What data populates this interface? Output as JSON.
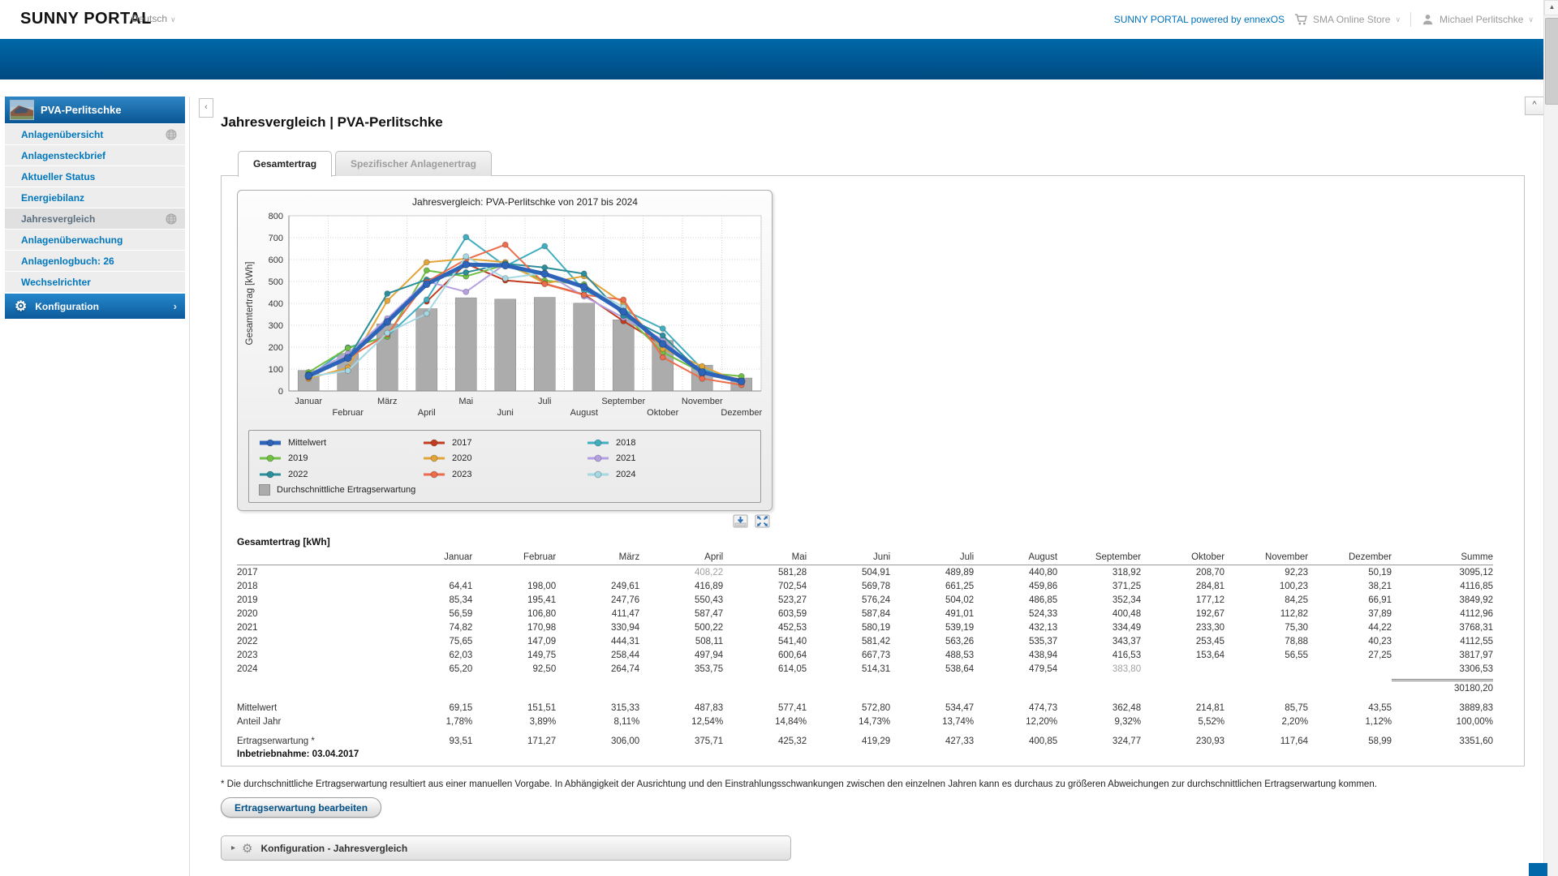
{
  "header": {
    "logo": "SUNNY PORTAL",
    "language": "Deutsch",
    "powered": "SUNNY PORTAL powered by ennexOS",
    "store": "SMA Online Store",
    "user": "Michael Perlitschke"
  },
  "icons": {
    "dropdown": "∨",
    "collapse_left": "‹",
    "collapse_up": "^",
    "chevron_right": "›",
    "gear": "⚙",
    "triangle_right": "▸",
    "scroll_up": "▲"
  },
  "sidebar": {
    "plant_name": "PVA-Perlitschke",
    "items": [
      {
        "label": "Anlagenübersicht",
        "slug": "anlagenuebersicht",
        "globe": true,
        "selected": false
      },
      {
        "label": "Anlagensteckbrief",
        "slug": "anlagensteckbrief",
        "globe": false,
        "selected": false
      },
      {
        "label": "Aktueller Status",
        "slug": "aktueller-status",
        "globe": false,
        "selected": false
      },
      {
        "label": "Energiebilanz",
        "slug": "energiebilanz",
        "globe": false,
        "selected": false
      },
      {
        "label": "Jahresvergleich",
        "slug": "jahresvergleich",
        "globe": true,
        "selected": true
      },
      {
        "label": "Anlagenüberwachung",
        "slug": "anlagenueberwachung",
        "globe": false,
        "selected": false
      },
      {
        "label": "Anlagenlogbuch: 26",
        "slug": "anlagenlogbuch",
        "globe": false,
        "selected": false
      },
      {
        "label": "Wechselrichter",
        "slug": "wechselrichter",
        "globe": false,
        "selected": false
      }
    ],
    "config_label": "Konfiguration"
  },
  "main": {
    "title": "Jahresvergleich | PVA-Perlitschke",
    "tabs": [
      {
        "label": "Gesamtertrag",
        "active": true
      },
      {
        "label": "Spezifischer Anlagenertrag",
        "active": false
      }
    ]
  },
  "chart_data": {
    "type": "line+bar",
    "title": "Jahresvergleich: PVA-Perlitschke von 2017 bis 2024",
    "ylabel": "Gesamtertrag [kWh]",
    "ylim": [
      0,
      800
    ],
    "ytick_step": 100,
    "grid": true,
    "legend_position": "bottom",
    "categories": [
      "Januar",
      "Februar",
      "März",
      "April",
      "Mai",
      "Juni",
      "Juli",
      "August",
      "September",
      "Oktober",
      "November",
      "Dezember"
    ],
    "series": [
      {
        "name": "Mittelwert",
        "color": "#2d64b9",
        "thick": true,
        "values": [
          69.15,
          151.51,
          315.33,
          487.83,
          577.41,
          572.8,
          534.47,
          474.73,
          362.48,
          214.81,
          85.75,
          43.55
        ]
      },
      {
        "name": "2017",
        "color": "#c23c20",
        "values": [
          null,
          null,
          null,
          408.22,
          581.28,
          504.91,
          489.89,
          440.8,
          318.92,
          208.7,
          92.23,
          50.19
        ]
      },
      {
        "name": "2018",
        "color": "#41aec0",
        "values": [
          64.41,
          198.0,
          249.61,
          416.89,
          702.54,
          569.78,
          661.25,
          459.86,
          371.25,
          284.81,
          100.23,
          38.21
        ]
      },
      {
        "name": "2019",
        "color": "#71bf44",
        "values": [
          85.34,
          195.41,
          247.76,
          550.43,
          523.27,
          576.24,
          504.02,
          486.85,
          352.34,
          177.12,
          84.25,
          66.91
        ]
      },
      {
        "name": "2020",
        "color": "#e3a53a",
        "values": [
          56.59,
          106.8,
          411.47,
          587.47,
          603.59,
          587.84,
          491.01,
          524.33,
          400.48,
          192.67,
          112.82,
          37.89
        ]
      },
      {
        "name": "2021",
        "color": "#b5a1e2",
        "values": [
          74.82,
          170.98,
          330.94,
          500.22,
          452.53,
          580.19,
          539.19,
          432.13,
          334.49,
          233.3,
          75.3,
          44.22
        ]
      },
      {
        "name": "2022",
        "color": "#2d8e9b",
        "values": [
          75.65,
          147.09,
          444.31,
          508.11,
          541.4,
          581.42,
          563.26,
          535.37,
          343.37,
          253.45,
          78.88,
          40.23
        ]
      },
      {
        "name": "2023",
        "color": "#ec6c4c",
        "values": [
          62.03,
          149.75,
          258.44,
          497.94,
          600.64,
          667.73,
          488.53,
          438.94,
          416.53,
          153.64,
          56.55,
          27.25
        ]
      },
      {
        "name": "2024",
        "color": "#a6d8e4",
        "values": [
          65.2,
          92.5,
          264.74,
          353.75,
          614.05,
          514.31,
          538.64,
          479.54,
          383.8,
          null,
          null,
          null
        ]
      }
    ],
    "bars": {
      "name": "Durchschnittliche Ertragserwartung",
      "color": "#acacac",
      "values": [
        93.51,
        171.27,
        306.0,
        375.71,
        425.32,
        419.29,
        427.33,
        400.85,
        324.77,
        230.93,
        117.64,
        58.99
      ]
    }
  },
  "table": {
    "title": "Gesamtertrag [kWh]",
    "columns": [
      "Januar",
      "Februar",
      "März",
      "April",
      "Mai",
      "Juni",
      "Juli",
      "August",
      "September",
      "Oktober",
      "November",
      "Dezember",
      "Summe"
    ],
    "rows": [
      {
        "label": "2017",
        "muted": [
          3
        ],
        "values": [
          "",
          "",
          "",
          "408,22",
          "581,28",
          "504,91",
          "489,89",
          "440,80",
          "318,92",
          "208,70",
          "92,23",
          "50,19",
          "3095,12"
        ]
      },
      {
        "label": "2018",
        "muted": [],
        "values": [
          "64,41",
          "198,00",
          "249,61",
          "416,89",
          "702,54",
          "569,78",
          "661,25",
          "459,86",
          "371,25",
          "284,81",
          "100,23",
          "38,21",
          "4116,85"
        ]
      },
      {
        "label": "2019",
        "muted": [],
        "values": [
          "85,34",
          "195,41",
          "247,76",
          "550,43",
          "523,27",
          "576,24",
          "504,02",
          "486,85",
          "352,34",
          "177,12",
          "84,25",
          "66,91",
          "3849,92"
        ]
      },
      {
        "label": "2020",
        "muted": [],
        "values": [
          "56,59",
          "106,80",
          "411,47",
          "587,47",
          "603,59",
          "587,84",
          "491,01",
          "524,33",
          "400,48",
          "192,67",
          "112,82",
          "37,89",
          "4112,96"
        ]
      },
      {
        "label": "2021",
        "muted": [],
        "values": [
          "74,82",
          "170,98",
          "330,94",
          "500,22",
          "452,53",
          "580,19",
          "539,19",
          "432,13",
          "334,49",
          "233,30",
          "75,30",
          "44,22",
          "3768,31"
        ]
      },
      {
        "label": "2022",
        "muted": [],
        "values": [
          "75,65",
          "147,09",
          "444,31",
          "508,11",
          "541,40",
          "581,42",
          "563,26",
          "535,37",
          "343,37",
          "253,45",
          "78,88",
          "40,23",
          "4112,55"
        ]
      },
      {
        "label": "2023",
        "muted": [],
        "values": [
          "62,03",
          "149,75",
          "258,44",
          "497,94",
          "600,64",
          "667,73",
          "488,53",
          "438,94",
          "416,53",
          "153,64",
          "56,55",
          "27,25",
          "3817,97"
        ]
      },
      {
        "label": "2024",
        "muted": [
          8
        ],
        "values": [
          "65,20",
          "92,50",
          "264,74",
          "353,75",
          "614,05",
          "514,31",
          "538,64",
          "479,54",
          "383,80",
          "",
          "",
          "",
          "3306,53"
        ]
      }
    ],
    "grand_total": "30180,20",
    "summary_rows": [
      {
        "label": "Mittelwert",
        "values": [
          "69,15",
          "151,51",
          "315,33",
          "487,83",
          "577,41",
          "572,80",
          "534,47",
          "474,73",
          "362,48",
          "214,81",
          "85,75",
          "43,55",
          "3889,83"
        ]
      },
      {
        "label": "Anteil Jahr",
        "values": [
          "1,78%",
          "3,89%",
          "8,11%",
          "12,54%",
          "14,84%",
          "14,73%",
          "13,74%",
          "12,20%",
          "9,32%",
          "5,52%",
          "2,20%",
          "1,12%",
          "100,00%"
        ]
      }
    ],
    "expectation_row": {
      "label": "Ertragserwartung *",
      "values": [
        "93,51",
        "171,27",
        "306,00",
        "375,71",
        "425,32",
        "419,29",
        "427,33",
        "400,85",
        "324,77",
        "230,93",
        "117,64",
        "58,99",
        "3351,60"
      ]
    },
    "commissioning_label": "Inbetriebnahme:",
    "commissioning_value": "03.04.2017"
  },
  "footnote": "* Die durchschnittliche Ertragserwartung resultiert aus einer manuellen Vorgabe. In Abhängigkeit der Ausrichtung und den Einstrahlungsschwankungen zwischen den einzelnen Jahren kann es durchaus zu größeren Abweichungen zur durchschnittlichen Ertragserwartung kommen.",
  "actions": {
    "edit_expectation": "Ertragserwartung bearbeiten"
  },
  "config_panel": {
    "label": "Konfiguration - Jahresvergleich"
  }
}
